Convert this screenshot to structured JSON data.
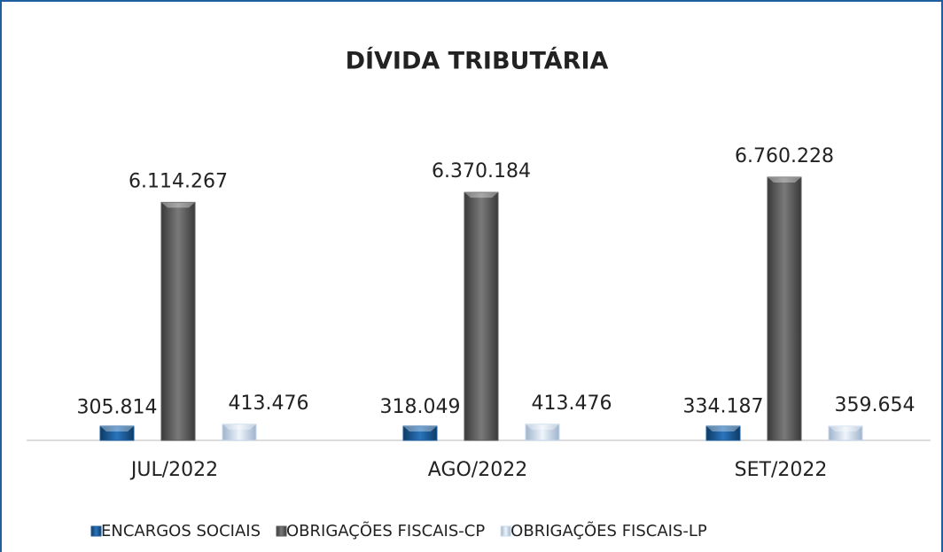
{
  "chart_data": {
    "type": "bar",
    "title": "DÍVIDA TRIBUTÁRIA",
    "categories": [
      "JUL/2022",
      "AGO/2022",
      "SET/2022"
    ],
    "series": [
      {
        "name": "ENCARGOS SOCIAIS",
        "color": "#1f5f9e",
        "values": [
          305814,
          318049,
          334187
        ],
        "value_labels": [
          "305.814",
          "318.049",
          "334.187"
        ]
      },
      {
        "name": "OBRIGAÇÕES FISCAIS-CP",
        "color": "#5a5a5a",
        "values": [
          6114267,
          6370184,
          6760228
        ],
        "value_labels": [
          "6.114.267",
          "6.370.184",
          "6.760.228"
        ]
      },
      {
        "name": "OBRIGAÇÕES FISCAIS-LP",
        "color": "#c9d9ec",
        "values": [
          413476,
          413476,
          359654
        ],
        "value_labels": [
          "413.476",
          "413.476",
          "359.654"
        ]
      }
    ],
    "legend": "bottom"
  }
}
